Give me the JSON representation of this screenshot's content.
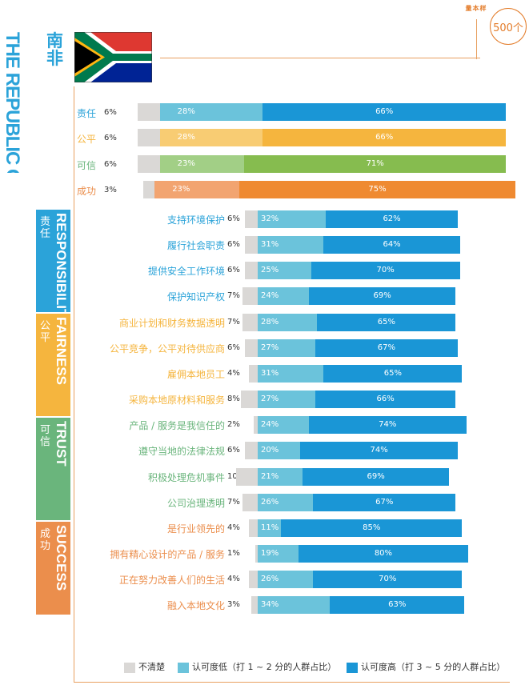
{
  "sample": {
    "label": "样本量",
    "count": "500个"
  },
  "country": {
    "cn": "南非",
    "en": "THE REPUBLIC OF SOUTH AFRICA"
  },
  "colors": {
    "unclear": "#DAD8D6",
    "responsibility": "#2BA3D9",
    "fairness": "#F5B53E",
    "trust": "#6AB57C",
    "success": "#EB8E4C",
    "low": "#6BC3DB",
    "high": "#1A96D6"
  },
  "categories": [
    {
      "key": "responsibility",
      "cn": "责任",
      "en": "RESPONSIBILITY"
    },
    {
      "key": "fairness",
      "cn": "公平",
      "en": "FAIRNESS"
    },
    {
      "key": "trust",
      "cn": "可信",
      "en": "TRUST"
    },
    {
      "key": "success",
      "cn": "成功",
      "en": "SUCCESS"
    }
  ],
  "legend": [
    {
      "key": "unclear",
      "label": "不清楚"
    },
    {
      "key": "low",
      "label": "认可度低（打 1 ~ 2 分的人群占比）"
    },
    {
      "key": "high",
      "label": "认可度高（打 3 ~ 5 分的人群占比）"
    }
  ],
  "chart_data": {
    "type": "bar",
    "title": "南非 THE REPUBLIC OF SOUTH AFRICA",
    "stacked": true,
    "orientation": "horizontal",
    "series_names": [
      "不清楚",
      "认可度低",
      "认可度高"
    ],
    "summary": [
      {
        "label": "责任",
        "cat": "responsibility",
        "unclear": 6,
        "low": 28,
        "high": 66
      },
      {
        "label": "公平",
        "cat": "fairness",
        "unclear": 6,
        "low": 28,
        "high": 66
      },
      {
        "label": "可信",
        "cat": "trust",
        "unclear": 6,
        "low": 23,
        "high": 71
      },
      {
        "label": "成功",
        "cat": "success",
        "unclear": 3,
        "low": 23,
        "high": 75
      }
    ],
    "details": [
      {
        "label": "支持环境保护",
        "cat": "responsibility",
        "unclear": 6,
        "low": 32,
        "high": 62
      },
      {
        "label": "履行社会职责",
        "cat": "responsibility",
        "unclear": 6,
        "low": 31,
        "high": 64
      },
      {
        "label": "提供安全工作环境",
        "cat": "responsibility",
        "unclear": 6,
        "low": 25,
        "high": 70
      },
      {
        "label": "保护知识产权",
        "cat": "responsibility",
        "unclear": 7,
        "low": 24,
        "high": 69
      },
      {
        "label": "商业计划和财务数据透明",
        "cat": "fairness",
        "unclear": 7,
        "low": 28,
        "high": 65
      },
      {
        "label": "公平竞争，公平对待供应商",
        "cat": "fairness",
        "unclear": 6,
        "low": 27,
        "high": 67
      },
      {
        "label": "雇佣本地员工",
        "cat": "fairness",
        "unclear": 4,
        "low": 31,
        "high": 65
      },
      {
        "label": "采购本地原材料和服务",
        "cat": "fairness",
        "unclear": 8,
        "low": 27,
        "high": 66
      },
      {
        "label": "产品 / 服务是我信任的",
        "cat": "trust",
        "unclear": 2,
        "low": 24,
        "high": 74
      },
      {
        "label": "遵守当地的法律法规",
        "cat": "trust",
        "unclear": 6,
        "low": 20,
        "high": 74
      },
      {
        "label": "积极处理危机事件",
        "cat": "trust",
        "unclear": 10,
        "low": 21,
        "high": 69
      },
      {
        "label": "公司治理透明",
        "cat": "trust",
        "unclear": 7,
        "low": 26,
        "high": 67
      },
      {
        "label": "是行业领先的",
        "cat": "success",
        "unclear": 4,
        "low": 11,
        "high": 85
      },
      {
        "label": "拥有精心设计的产品 / 服务",
        "cat": "success",
        "unclear": 1,
        "low": 19,
        "high": 80
      },
      {
        "label": "正在努力改善人们的生活",
        "cat": "success",
        "unclear": 4,
        "low": 26,
        "high": 70
      },
      {
        "label": "融入本地文化",
        "cat": "success",
        "unclear": 3,
        "low": 34,
        "high": 63
      }
    ]
  }
}
